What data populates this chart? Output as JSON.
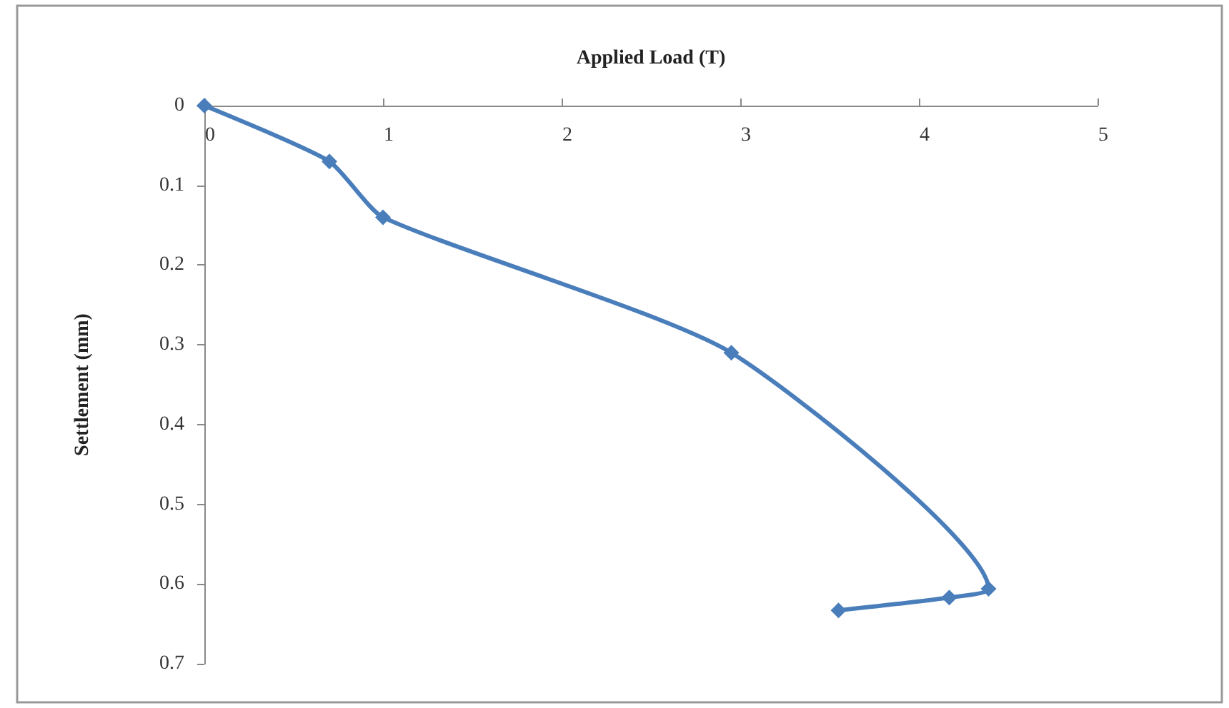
{
  "chart_data": {
    "type": "line",
    "xlabel": "Applied Load (T)",
    "ylabel": "Settlement (mm)",
    "x": [
      0,
      0.7,
      1.0,
      2.95,
      4.39,
      4.17,
      3.55
    ],
    "series": [
      {
        "color": "#4a7ebb",
        "values": [
          0,
          0.07,
          0.14,
          0.31,
          0.606,
          0.617,
          0.633
        ]
      }
    ],
    "xlim": [
      0,
      5
    ],
    "xticks": [
      0,
      1,
      2,
      3,
      4,
      5
    ],
    "ylim": [
      0.7,
      0
    ],
    "yticks": [
      0,
      0.1,
      0.2,
      0.3,
      0.4,
      0.5,
      0.6,
      0.7
    ],
    "grid": false,
    "marker": "diamond",
    "line_style": "solid"
  }
}
